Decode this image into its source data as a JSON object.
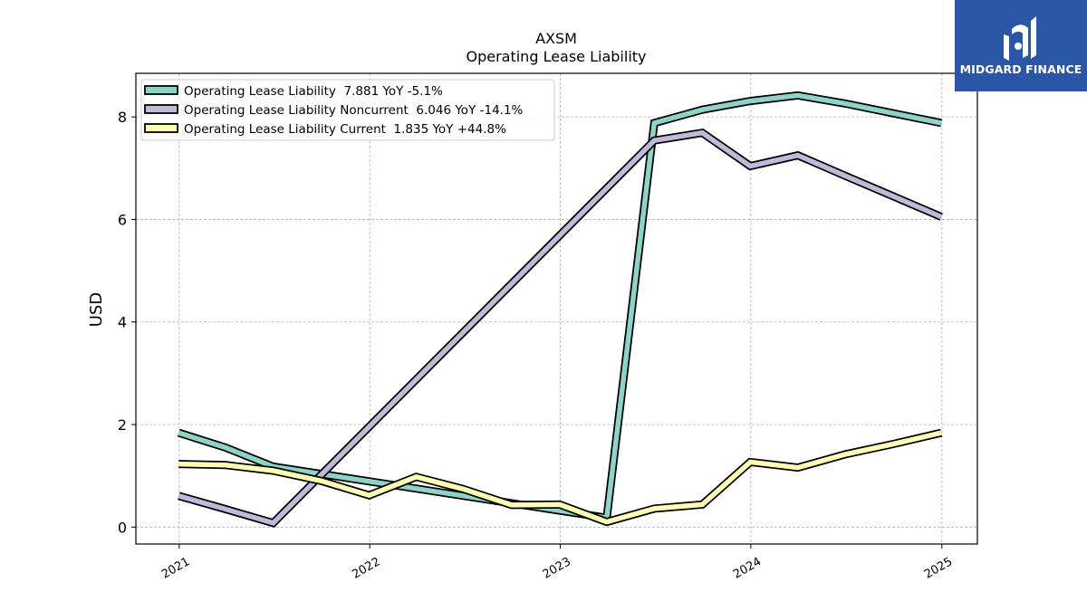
{
  "chart_data": {
    "type": "line",
    "title": "AXSM",
    "subtitle": "Operating Lease Liability",
    "ylabel": "USD",
    "xlabel": "",
    "xlim": [
      "2020-10-10",
      "2025-03-10"
    ],
    "ylim": [
      -0.33,
      8.85
    ],
    "x_ticks": [
      "2021",
      "2022",
      "2023",
      "2024",
      "2025"
    ],
    "y_ticks": [
      "0",
      "2",
      "4",
      "6",
      "8"
    ],
    "grid": true,
    "legend_position": "top-left",
    "x": [
      "2020-12-31",
      "2021-03-31",
      "2021-06-30",
      "2021-09-30",
      "2021-12-31",
      "2022-03-31",
      "2022-06-30",
      "2022-09-30",
      "2022-12-31",
      "2023-03-31",
      "2023-06-30",
      "2023-09-30",
      "2023-12-31",
      "2024-03-31",
      "2024-06-30",
      "2024-09-30",
      "2024-12-31"
    ],
    "series": [
      {
        "name": "Operating Lease Liability",
        "legend_label": "Operating Lease Liability  7.881 YoY -5.1%",
        "color": "#8dd3c7",
        "values": [
          1.84,
          1.55,
          1.18,
          null,
          null,
          null,
          null,
          null,
          null,
          0.18,
          7.88,
          8.14,
          8.31,
          8.42,
          8.26,
          8.07,
          7.88
        ]
      },
      {
        "name": "Operating Lease Liability Noncurrent",
        "legend_label": "Operating Lease Liability Noncurrent  6.046 YoY -14.1%",
        "color": "#bebada",
        "values": [
          0.61,
          0.35,
          0.08,
          null,
          null,
          null,
          null,
          null,
          null,
          null,
          7.54,
          7.69,
          7.04,
          7.25,
          6.85,
          6.45,
          6.05
        ]
      },
      {
        "name": "Operating Lease Liability Current",
        "legend_label": "Operating Lease Liability Current  1.835 YoY +44.8%",
        "color": "#ffffb3",
        "values": [
          1.23,
          1.21,
          1.1,
          0.9,
          0.62,
          0.98,
          0.74,
          0.43,
          0.44,
          0.1,
          0.36,
          0.44,
          1.27,
          1.16,
          1.42,
          1.62,
          1.84
        ]
      }
    ]
  },
  "logo": {
    "text": "MIDGARD FINANCE",
    "background": "#2b55a5"
  }
}
